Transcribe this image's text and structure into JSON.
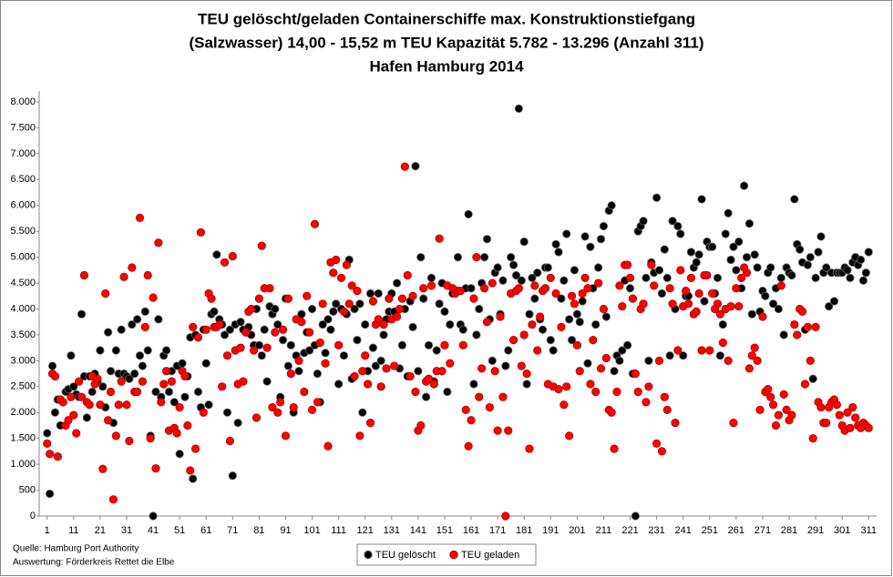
{
  "chart_data": {
    "type": "scatter",
    "title": [
      "TEU gelöscht/geladen Containerschiffe max. Konstruktionstiefgang",
      "(Salzwasser) 14,00 - 15,52 m TEU Kapazität 5.782 - 13.296 (Anzahl 311)",
      "Hafen Hamburg 2014"
    ],
    "annotations": [
      "Quelle: Hamburg Port Authority",
      "Auswertung: Förderkreis Rettet die Elbe"
    ],
    "legend": "bottom",
    "xlim": [
      -2,
      314
    ],
    "xticks": [
      1,
      11,
      21,
      31,
      41,
      51,
      61,
      71,
      81,
      91,
      101,
      111,
      121,
      131,
      141,
      151,
      161,
      171,
      181,
      191,
      201,
      211,
      221,
      231,
      241,
      251,
      261,
      271,
      281,
      291,
      301,
      311
    ],
    "ylim": [
      0,
      8000
    ],
    "yticks": [
      {
        "value": 0,
        "label": "0"
      },
      {
        "value": 500,
        "label": "500"
      },
      {
        "value": 1000,
        "label": "1.000"
      },
      {
        "value": 1500,
        "label": "1.500"
      },
      {
        "value": 2000,
        "label": "2.000"
      },
      {
        "value": 2500,
        "label": "2.500"
      },
      {
        "value": 3000,
        "label": "3.000"
      },
      {
        "value": 3500,
        "label": "3.500"
      },
      {
        "value": 4000,
        "label": "4.000"
      },
      {
        "value": 4500,
        "label": "4.500"
      },
      {
        "value": 5000,
        "label": "5.000"
      },
      {
        "value": 5500,
        "label": "5.500"
      },
      {
        "value": 6000,
        "label": "6.000"
      },
      {
        "value": 6500,
        "label": "6.500"
      },
      {
        "value": 7000,
        "label": "7.000"
      },
      {
        "value": 7500,
        "label": "7.500"
      },
      {
        "value": 8000,
        "label": "8.000"
      }
    ],
    "x": [
      1,
      2,
      3,
      4,
      5,
      6,
      7,
      8,
      9,
      10,
      11,
      12,
      13,
      14,
      15,
      16,
      17,
      18,
      19,
      20,
      21,
      22,
      23,
      24,
      25,
      26,
      27,
      28,
      29,
      30,
      31,
      32,
      33,
      34,
      35,
      36,
      37,
      38,
      39,
      40,
      41,
      42,
      43,
      44,
      45,
      46,
      47,
      48,
      49,
      50,
      51,
      52,
      53,
      54,
      55,
      56,
      57,
      58,
      59,
      60,
      61,
      62,
      63,
      64,
      65,
      66,
      67,
      68,
      69,
      70,
      71,
      72,
      73,
      74,
      75,
      76,
      77,
      78,
      79,
      80,
      81,
      82,
      83,
      84,
      85,
      86,
      87,
      88,
      89,
      90,
      91,
      92,
      93,
      94,
      95,
      96,
      97,
      98,
      99,
      100,
      101,
      102,
      103,
      104,
      105,
      106,
      107,
      108,
      109,
      110,
      111,
      112,
      113,
      114,
      115,
      116,
      117,
      118,
      119,
      120,
      121,
      122,
      123,
      124,
      125,
      126,
      127,
      128,
      129,
      130,
      131,
      132,
      133,
      134,
      135,
      136,
      137,
      138,
      139,
      140,
      141,
      142,
      143,
      144,
      145,
      146,
      147,
      148,
      149,
      150,
      151,
      152,
      153,
      154,
      155,
      156,
      157,
      158,
      159,
      160,
      161,
      162,
      163,
      164,
      165,
      166,
      167,
      168,
      169,
      170,
      171,
      172,
      173,
      174,
      175,
      176,
      177,
      178,
      179,
      180,
      181,
      182,
      183,
      184,
      185,
      186,
      187,
      188,
      189,
      190,
      191,
      192,
      193,
      194,
      195,
      196,
      197,
      198,
      199,
      200,
      201,
      202,
      203,
      204,
      205,
      206,
      207,
      208,
      209,
      210,
      211,
      212,
      213,
      214,
      215,
      216,
      217,
      218,
      219,
      220,
      221,
      222,
      223,
      224,
      225,
      226,
      227,
      228,
      229,
      230,
      231,
      232,
      233,
      234,
      235,
      236,
      237,
      238,
      239,
      240,
      241,
      242,
      243,
      244,
      245,
      246,
      247,
      248,
      249,
      250,
      251,
      252,
      253,
      254,
      255,
      256,
      257,
      258,
      259,
      260,
      261,
      262,
      263,
      264,
      265,
      266,
      267,
      268,
      269,
      270,
      271,
      272,
      273,
      274,
      275,
      276,
      277,
      278,
      279,
      280,
      281,
      282,
      283,
      284,
      285,
      286,
      287,
      288,
      289,
      290,
      291,
      292,
      293,
      294,
      295,
      296,
      297,
      298,
      299,
      300,
      301,
      302,
      303,
      304,
      305,
      306,
      307,
      308,
      309,
      310,
      311
    ],
    "series": [
      {
        "name": "TEU gelöscht",
        "color": "#000000",
        "values": [
          1600,
          430,
          2900,
          2000,
          2250,
          1750,
          2200,
          2400,
          2450,
          3100,
          2500,
          2350,
          2300,
          3900,
          2700,
          1900,
          2700,
          2400,
          2750,
          2600,
          3200,
          2500,
          2100,
          3550,
          2800,
          1800,
          3200,
          2750,
          3600,
          2750,
          2700,
          2650,
          3700,
          2750,
          3800,
          3100,
          2900,
          3950,
          3200,
          1550,
          0,
          2400,
          3800,
          2300,
          3100,
          3200,
          2400,
          2800,
          2200,
          2900,
          1200,
          2950,
          2300,
          2700,
          3450,
          720,
          3500,
          2400,
          2100,
          3600,
          2950,
          2150,
          3900,
          3950,
          5050,
          3800,
          3700,
          3500,
          2000,
          3600,
          780,
          3700,
          1800,
          3750,
          3600,
          3550,
          3650,
          3500,
          3300,
          4000,
          3300,
          3100,
          3600,
          2600,
          4050,
          3900,
          4000,
          3700,
          2300,
          3400,
          4200,
          2900,
          3300,
          2000,
          3100,
          2800,
          3900,
          3150,
          3550,
          3200,
          4000,
          3300,
          2750,
          2200,
          3700,
          3150,
          3800,
          3600,
          3950,
          4100,
          2550,
          4000,
          3100,
          3900,
          4950,
          2650,
          4000,
          3400,
          4100,
          2000,
          3700,
          2800,
          4300,
          3250,
          2900,
          4300,
          3000,
          3500,
          3800,
          3950,
          4300,
          3950,
          4500,
          2850,
          3300,
          4000,
          2700,
          4150,
          3650,
          6760,
          2800,
          5000,
          4200,
          2300,
          3300,
          4600,
          2600,
          3200,
          4100,
          4500,
          3950,
          2400,
          3700,
          4300,
          4350,
          5000,
          3700,
          3600,
          4400,
          5830,
          4400,
          2550,
          3500,
          4000,
          4500,
          5000,
          5350,
          3800,
          3000,
          4700,
          4800,
          3900,
          4550,
          2900,
          3200,
          5000,
          4850,
          4650,
          7870,
          4550,
          5300,
          2550,
          3900,
          4600,
          4200,
          4700,
          3800,
          3600,
          4800,
          4800,
          3400,
          3200,
          5250,
          5100,
          4200,
          4550,
          5450,
          3800,
          3400,
          4750,
          3900,
          3750,
          4150,
          5400,
          2950,
          5200,
          4400,
          3700,
          4800,
          5350,
          5600,
          3850,
          5900,
          6000,
          2800,
          3100,
          3000,
          3200,
          4550,
          3300,
          4400,
          2750,
          0,
          5500,
          5600,
          5700,
          4600,
          3000,
          4900,
          4700,
          6150,
          4750,
          4300,
          5150,
          4600,
          3100,
          5700,
          4000,
          5600,
          5450,
          3100,
          4250,
          4250,
          5100,
          4800,
          4900,
          5050,
          6120,
          4150,
          5300,
          5200,
          5200,
          4300,
          4600,
          3100,
          3700,
          5450,
          5850,
          4950,
          5200,
          4750,
          5300,
          4400,
          6380,
          5000,
          5650,
          3900,
          5050,
          4800,
          3950,
          4350,
          4250,
          4700,
          4800,
          4100,
          4400,
          4000,
          4600,
          3500,
          4800,
          4700,
          4650,
          6120,
          5250,
          5150,
          4900,
          3600,
          4850,
          5000,
          2650,
          4600,
          5100,
          5400,
          4700,
          4800,
          4050,
          4700,
          4150,
          4700,
          4700,
          4700,
          4800,
          4750,
          4600,
          4900,
          5000,
          4850,
          4950,
          4550,
          4700,
          5100
        ]
      },
      {
        "name": "TEU geladen",
        "color": "#ff0000",
        "values": [
          1400,
          1200,
          2750,
          2700,
          1150,
          2250,
          2200,
          1750,
          1850,
          2300,
          1950,
          1600,
          2600,
          2300,
          4650,
          2200,
          2150,
          2700,
          2550,
          2650,
          2150,
          910,
          4300,
          1850,
          2400,
          320,
          1550,
          2150,
          2600,
          4620,
          2150,
          1450,
          4800,
          2400,
          2400,
          5760,
          2600,
          3650,
          4650,
          1500,
          4220,
          920,
          5280,
          2200,
          2550,
          2800,
          1650,
          2600,
          1700,
          1600,
          2100,
          2800,
          2700,
          1750,
          880,
          3650,
          1300,
          3450,
          5480,
          2000,
          3600,
          4300,
          4200,
          3650,
          3650,
          3700,
          2500,
          4900,
          3100,
          1450,
          5020,
          3200,
          2550,
          3250,
          2600,
          3550,
          3950,
          4000,
          3200,
          1900,
          4200,
          5220,
          4400,
          3250,
          4400,
          2100,
          3550,
          2000,
          2200,
          3600,
          1550,
          4200,
          2750,
          2100,
          3800,
          3000,
          3750,
          2400,
          4250,
          3550,
          2050,
          5640,
          2200,
          3350,
          4100,
          2950,
          1350,
          4900,
          4700,
          4950,
          3300,
          4600,
          3950,
          4850,
          4100,
          4450,
          2700,
          4350,
          1550,
          2800,
          3100,
          2550,
          1800,
          4150,
          3700,
          3800,
          2500,
          3700,
          2850,
          4200,
          3800,
          2900,
          3850,
          4000,
          4200,
          6750,
          4650,
          2700,
          4250,
          2400,
          1650,
          1750,
          4400,
          2600,
          2650,
          4450,
          2550,
          2800,
          5360,
          2800,
          3300,
          4450,
          2950,
          4400,
          4300,
          4350,
          4350,
          3300,
          2050,
          1350,
          1850,
          4200,
          5000,
          2300,
          2850,
          4400,
          3750,
          2100,
          4500,
          2800,
          1650,
          3850,
          2300,
          0,
          1650,
          4300,
          3400,
          4350,
          4400,
          2900,
          3500,
          2750,
          1300,
          3700,
          4450,
          3200,
          3850,
          4350,
          4400,
          2550,
          4600,
          2500,
          4300,
          2450,
          3650,
          2150,
          2500,
          1550,
          4250,
          4100,
          3300,
          2800,
          4300,
          4600,
          4400,
          2550,
          3400,
          2400,
          4500,
          2850,
          4000,
          3050,
          2050,
          2000,
          1300,
          2400,
          4450,
          4050,
          4850,
          4850,
          4600,
          4200,
          2750,
          2400,
          4000,
          4100,
          2200,
          2500,
          4850,
          4450,
          1400,
          3000,
          1250,
          2300,
          2050,
          4400,
          4100,
          1800,
          3200,
          4750,
          4050,
          4350,
          4100,
          4600,
          3900,
          3950,
          4300,
          3200,
          4650,
          4650,
          3200,
          4300,
          4000,
          4100,
          3900,
          3350,
          4000,
          3000,
          4050,
          1800,
          4400,
          4050,
          4600,
          4800,
          4700,
          2850,
          3100,
          3250,
          3000,
          2050,
          3850,
          2400,
          2450,
          2300,
          2150,
          1750,
          1950,
          4450,
          2350,
          2050,
          1850,
          1950,
          3700,
          3500,
          4000,
          3950,
          2550,
          3650,
          3000,
          1500,
          3650,
          2200,
          2100,
          1800,
          1800,
          2100,
          2200,
          2250,
          2150,
          1950,
          1750,
          1650,
          2000,
          1700,
          2100,
          1900,
          1750,
          1700,
          1800,
          1750,
          1700
        ]
      }
    ]
  }
}
